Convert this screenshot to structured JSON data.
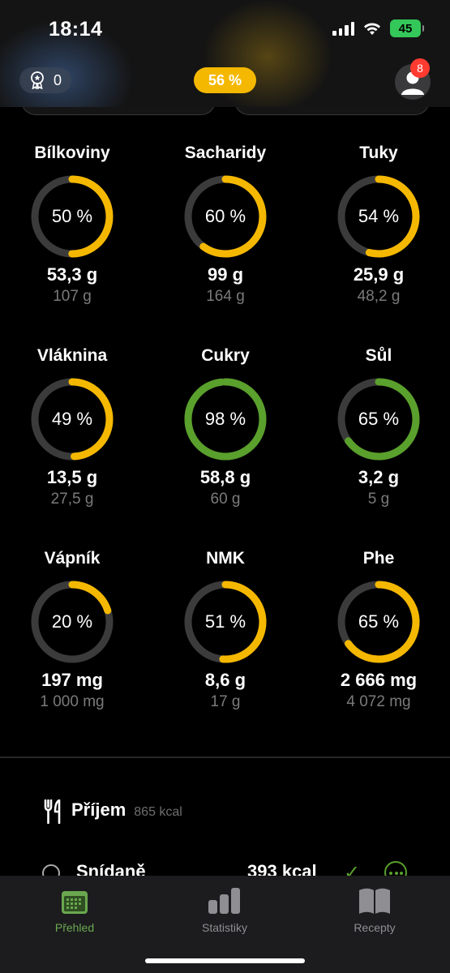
{
  "status_bar": {
    "time": "18:14",
    "battery": "45"
  },
  "header": {
    "badge_count": "0",
    "progress_label": "56 %",
    "progress_value": 56,
    "notification_count": "8"
  },
  "colors": {
    "warn": "#f5b800",
    "good": "#5aa02c",
    "track": "#3b3b3b"
  },
  "nutrients": [
    {
      "name": "Bílkoviny",
      "percent_label": "50 %",
      "percent": 50,
      "status": "warn",
      "amount": "53,3 g",
      "target": "107 g"
    },
    {
      "name": "Sacharidy",
      "percent_label": "60 %",
      "percent": 60,
      "status": "warn",
      "amount": "99 g",
      "target": "164 g"
    },
    {
      "name": "Tuky",
      "percent_label": "54 %",
      "percent": 54,
      "status": "warn",
      "amount": "25,9 g",
      "target": "48,2 g"
    },
    {
      "name": "Vláknina",
      "percent_label": "49 %",
      "percent": 49,
      "status": "warn",
      "amount": "13,5 g",
      "target": "27,5 g"
    },
    {
      "name": "Cukry",
      "percent_label": "98 %",
      "percent": 98,
      "status": "good",
      "amount": "58,8 g",
      "target": "60 g"
    },
    {
      "name": "Sůl",
      "percent_label": "65 %",
      "percent": 65,
      "status": "good",
      "amount": "3,2 g",
      "target": "5 g"
    },
    {
      "name": "Vápník",
      "percent_label": "20 %",
      "percent": 20,
      "status": "warn",
      "amount": "197 mg",
      "target": "1 000 mg"
    },
    {
      "name": "NMK",
      "percent_label": "51 %",
      "percent": 51,
      "status": "warn",
      "amount": "8,6 g",
      "target": "17 g"
    },
    {
      "name": "Phe",
      "percent_label": "65 %",
      "percent": 65,
      "status": "warn",
      "amount": "2 666 mg",
      "target": "4 072 mg"
    }
  ],
  "intake": {
    "title": "Příjem",
    "kcal": "865 kcal",
    "meals": [
      {
        "name": "Snídaně",
        "kcal": "393 kcal"
      }
    ]
  },
  "tabs": [
    {
      "label": "Přehled",
      "icon": "calendar-icon",
      "active": true
    },
    {
      "label": "Statistiky",
      "icon": "bar-chart-icon",
      "active": false
    },
    {
      "label": "Recepty",
      "icon": "book-icon",
      "active": false
    }
  ]
}
